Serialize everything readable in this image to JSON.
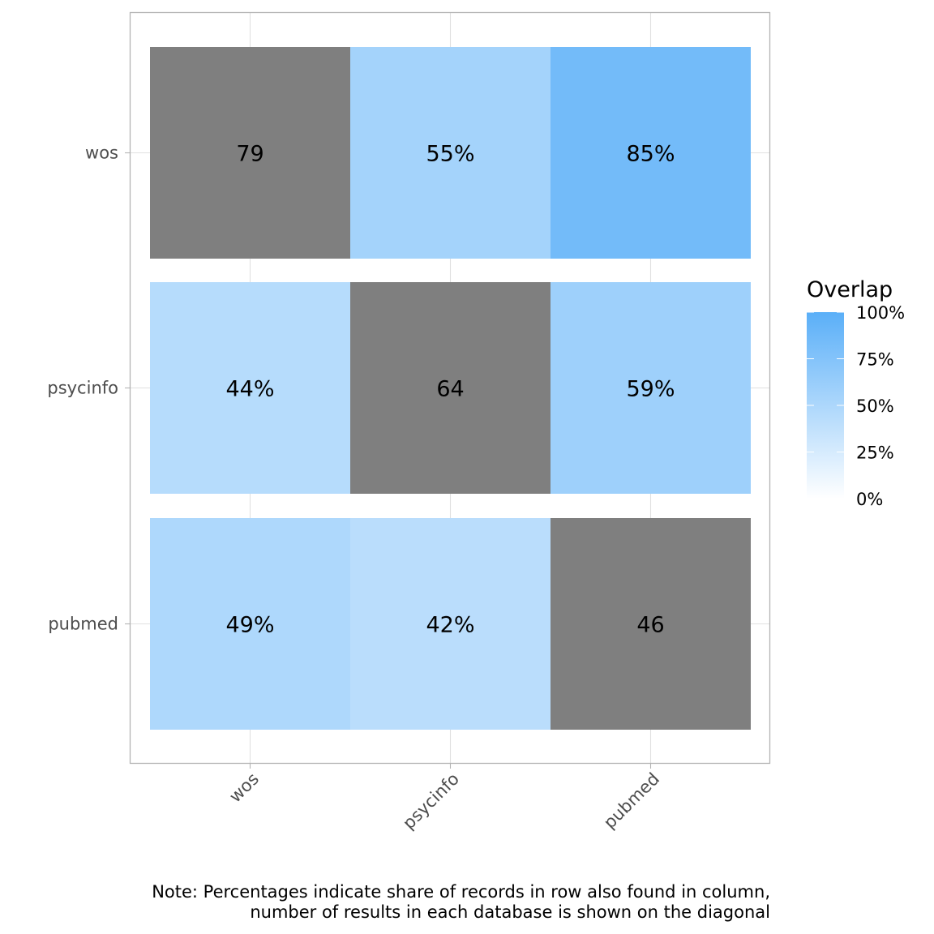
{
  "chart_data": {
    "type": "heatmap",
    "title": "",
    "xlabel": "",
    "ylabel": "",
    "rows": [
      "wos",
      "psycinfo",
      "pubmed"
    ],
    "columns": [
      "wos",
      "psycinfo",
      "pubmed"
    ],
    "cells": [
      [
        {
          "label": "79",
          "diagonal": true,
          "value": null
        },
        {
          "label": "55%",
          "diagonal": false,
          "value": 55
        },
        {
          "label": "85%",
          "diagonal": false,
          "value": 85
        }
      ],
      [
        {
          "label": "44%",
          "diagonal": false,
          "value": 44
        },
        {
          "label": "64",
          "diagonal": true,
          "value": null
        },
        {
          "label": "59%",
          "diagonal": false,
          "value": 59
        }
      ],
      [
        {
          "label": "49%",
          "diagonal": false,
          "value": 49
        },
        {
          "label": "42%",
          "diagonal": false,
          "value": 42
        },
        {
          "label": "46",
          "diagonal": true,
          "value": null
        }
      ]
    ],
    "legend": {
      "title": "Overlap",
      "position": "right",
      "ticks": [
        "100%",
        "75%",
        "50%",
        "25%",
        "0%"
      ],
      "tick_values": [
        100,
        75,
        50,
        25,
        0
      ],
      "range": [
        0,
        100
      ],
      "color_low": "#ffffff",
      "color_high": "#5aaff8"
    },
    "diagonal_color": "#7f7f7f",
    "grid": true,
    "caption": [
      "Note: Percentages indicate share of records in row also found in column,",
      "number of results in each database is shown on the diagonal"
    ]
  }
}
